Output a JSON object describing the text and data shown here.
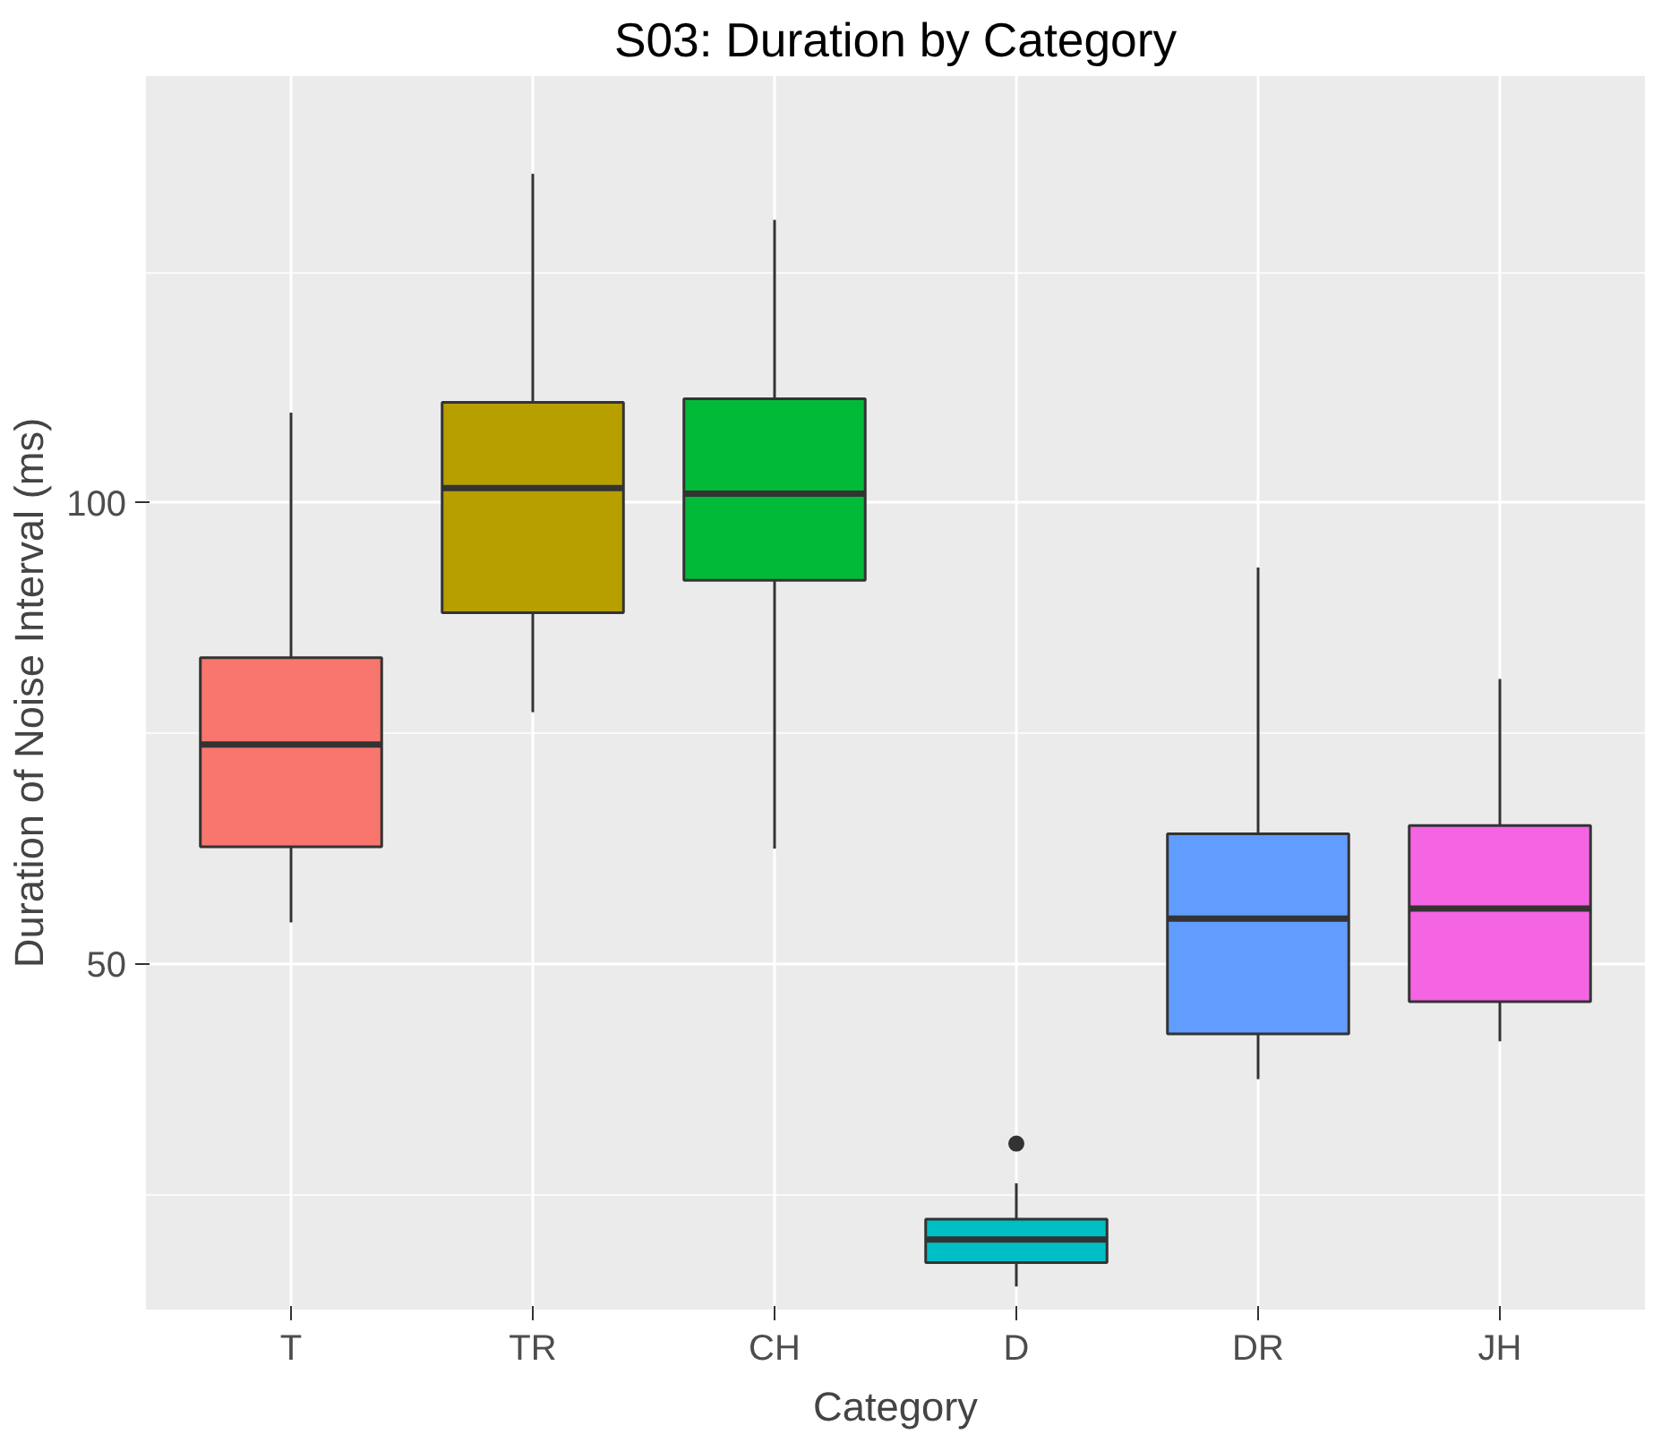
{
  "chart_data": {
    "type": "box",
    "title": "S03: Duration by Category",
    "xlabel": "Category",
    "ylabel": "Duration of Noise Interval (ms)",
    "categories": [
      "T",
      "TR",
      "CH",
      "D",
      "DR",
      "JH"
    ],
    "colors": [
      "#F8766D",
      "#B79F00",
      "#00BA38",
      "#00BFC4",
      "#619CFF",
      "#F564E3"
    ],
    "boxes": [
      {
        "low": 54.5,
        "q1": 62.7,
        "median": 73.8,
        "q3": 83.2,
        "high": 109.8
      },
      {
        "low": 77.3,
        "q1": 88.1,
        "median": 101.6,
        "q3": 110.9,
        "high": 135.7
      },
      {
        "low": 62.5,
        "q1": 91.6,
        "median": 101.0,
        "q3": 111.3,
        "high": 130.7
      },
      {
        "low": 15.0,
        "q1": 17.6,
        "median": 20.1,
        "q3": 22.3,
        "high": 26.2,
        "outliers": [
          30.5
        ]
      },
      {
        "low": 37.5,
        "q1": 42.4,
        "median": 54.9,
        "q3": 64.1,
        "high": 93.0
      },
      {
        "low": 41.6,
        "q1": 45.9,
        "median": 56.0,
        "q3": 65.0,
        "high": 80.9
      }
    ],
    "ylim": [
      12.5,
      146.3
    ],
    "yticks": [
      50,
      100
    ],
    "grid": true
  }
}
